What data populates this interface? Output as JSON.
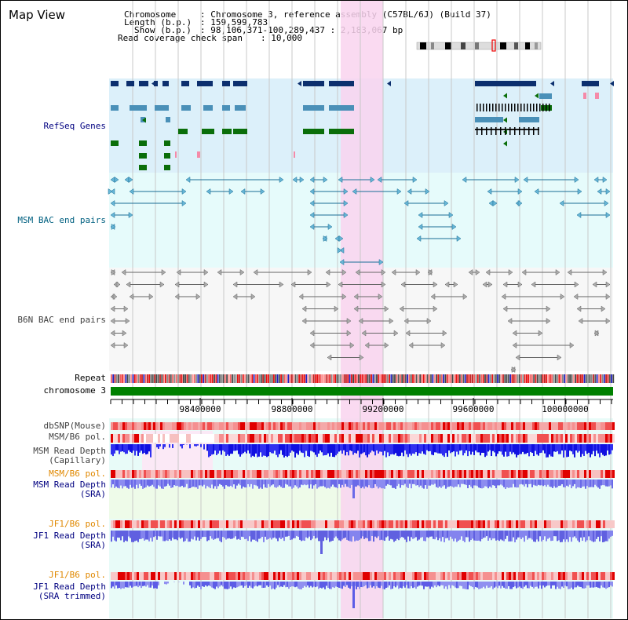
{
  "view": {
    "title": "Map View",
    "info": {
      "chromosome_label": "Chromosome",
      "chromosome_value": ": Chromosome 3, reference assembly (C57BL/6J) (Build 37)",
      "length_label": "Length (b.p.)",
      "length_value": ": 159,599,783",
      "show_label": "Show (b.p.)",
      "show_value": ": 98,106,371-100,289,437 : 2,183,067 bp",
      "span_label": "Read coverage check span",
      "span_value": ": 10,000"
    }
  },
  "tracks": {
    "refseq": "RefSeq Genes",
    "msm_bac": "MSM BAC end pairs",
    "b6n_bac": "B6N BAC end pairs",
    "repeat": "Repeat",
    "chromosome": "chromosome 3",
    "dbsnp": "dbSNP(Mouse)",
    "msm_pol_cap": "MSM/B6 pol.",
    "msm_depth_cap_1": "MSM Read Depth",
    "msm_depth_cap_2": "(Capillary)",
    "msm_pol_sra": "MSM/B6 pol.",
    "msm_depth_sra_1": "MSM Read Depth",
    "msm_depth_sra_2": "(SRA)",
    "jf1_pol": "JF1/B6 pol.",
    "jf1_depth_1": "JF1 Read Depth",
    "jf1_depth_2": "(SRA)",
    "jf1_pol_trim": "JF1/B6 pol.",
    "jf1_trim_1": "JF1 Read Depth",
    "jf1_trim_2": "(SRA trimmed)"
  },
  "axis": {
    "ticks": [
      "98400000",
      "98800000",
      "99200000",
      "99600000",
      "100000000"
    ]
  },
  "colors": {
    "refseq_bg": "#dcf0fa",
    "msm_bg": "#e6fbfb",
    "b6n_bg": "#f7f7f7",
    "highlight": "#f9d4ef",
    "chrom_green": "#008000",
    "label_blue": "#000080",
    "label_teal": "#006080",
    "label_orange": "#e08800",
    "label_gray": "#404040"
  }
}
